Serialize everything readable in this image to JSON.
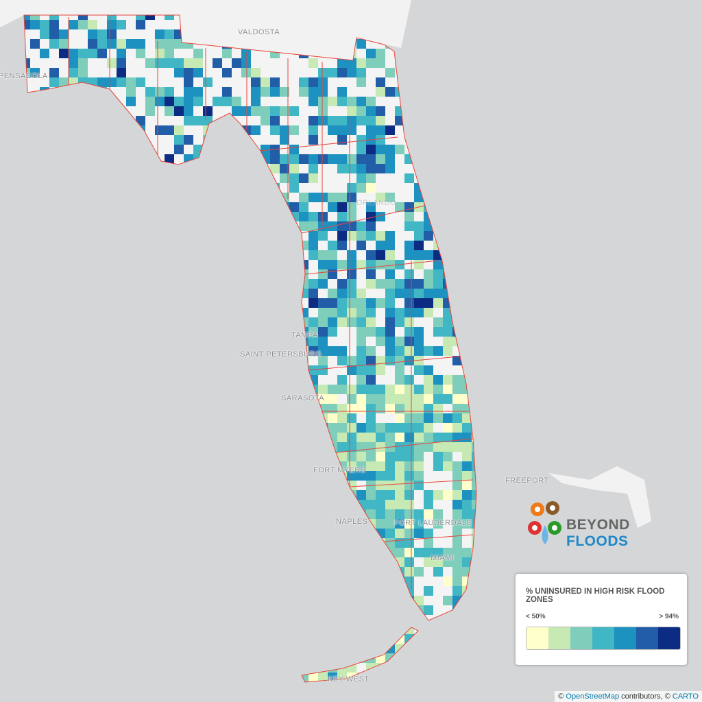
{
  "map": {
    "cities": [
      "VALDOSTA",
      "PENSACOLA",
      "SAINT PETERSBURG",
      "TAMPA",
      "SARASOTA",
      "FORT MYERS",
      "NAPLES",
      "FORT LAUDERDALE",
      "MIAMI",
      "KEY WEST",
      "FREEPORT",
      "ORLANDO"
    ],
    "boundary_color": "#e8453c",
    "no_data_color": "#f4f4f4"
  },
  "logo": {
    "word1": "BEYOND",
    "word2": "FLOODS"
  },
  "legend": {
    "title": "% UNINSURED IN HIGH RISK FLOOD ZONES",
    "min_label": "< 50%",
    "max_label": "> 94%",
    "colors": [
      "#ffffcc",
      "#c7e9b4",
      "#7fcdbb",
      "#41b6c4",
      "#1d91c0",
      "#225ea8",
      "#0c2c84"
    ]
  },
  "attribution": {
    "prefix": "©",
    "osm": "OpenStreetMap",
    "middle": "contributors, ©",
    "carto": "CARTO"
  }
}
